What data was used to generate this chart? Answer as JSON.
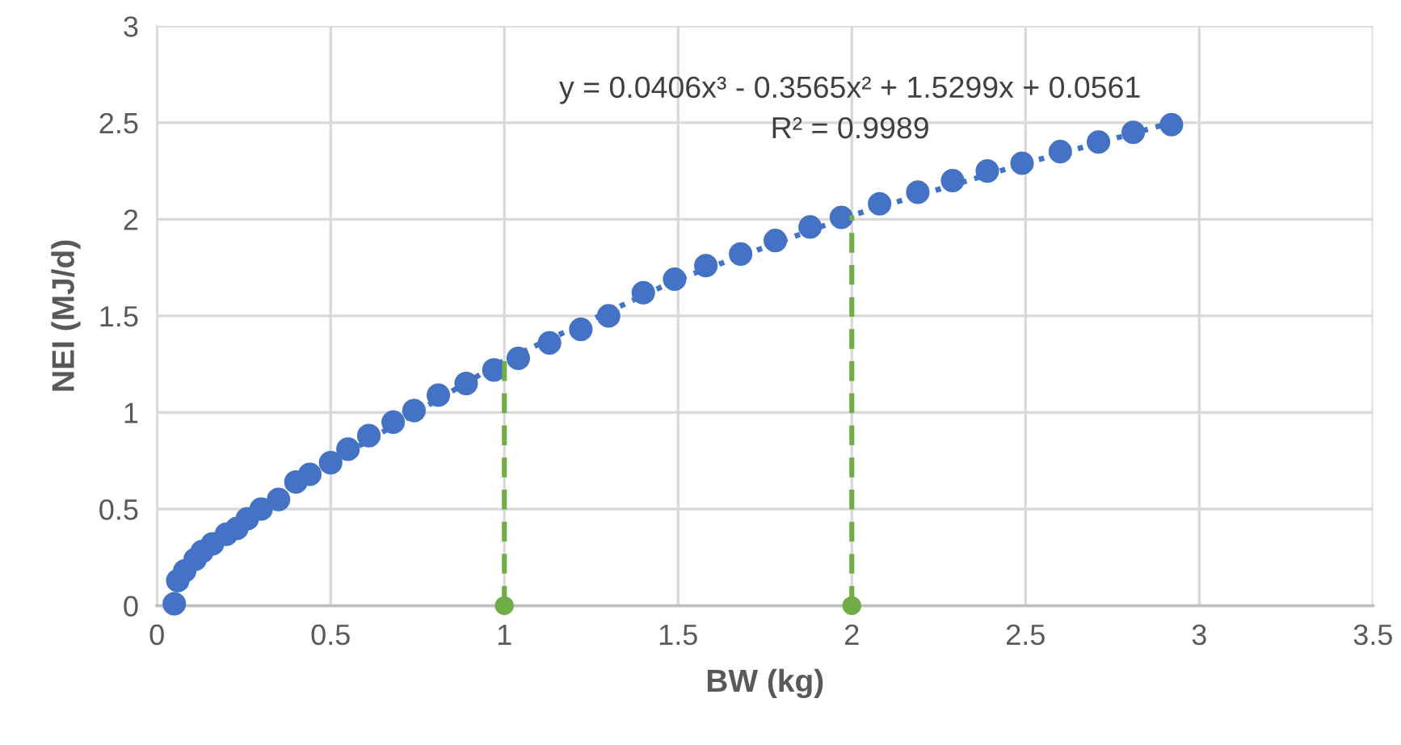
{
  "chart_data": {
    "type": "scatter",
    "xlabel": "BW (kg)",
    "ylabel": "NEI (MJ/d)",
    "xlim": [
      0,
      3.5
    ],
    "xticks": [
      0,
      0.5,
      1,
      1.5,
      2,
      2.5,
      3,
      3.5
    ],
    "ylim": [
      0,
      3
    ],
    "yticks": [
      0,
      0.5,
      1,
      1.5,
      2,
      2.5,
      3
    ],
    "grid": true,
    "legend": false,
    "annotations": [
      "y = 0.0406x³ - 0.3565x² + 1.5299x + 0.0561",
      "R² = 0.9989"
    ],
    "series": [
      {
        "color": "#4472c4",
        "marker": "circle",
        "x": [
          0.05,
          0.06,
          0.08,
          0.11,
          0.13,
          0.16,
          0.2,
          0.23,
          0.26,
          0.3,
          0.35,
          0.4,
          0.44,
          0.5,
          0.55,
          0.61,
          0.68,
          0.74,
          0.81,
          0.89,
          0.97,
          1.04,
          1.13,
          1.22,
          1.3,
          1.4,
          1.49,
          1.58,
          1.68,
          1.78,
          1.88,
          1.97,
          2.08,
          2.19,
          2.29,
          2.39,
          2.49,
          2.6,
          2.71,
          2.81,
          2.92
        ],
        "values": [
          0.01,
          0.13,
          0.18,
          0.24,
          0.28,
          0.32,
          0.37,
          0.4,
          0.45,
          0.5,
          0.55,
          0.64,
          0.68,
          0.74,
          0.81,
          0.88,
          0.95,
          1.01,
          1.09,
          1.15,
          1.22,
          1.28,
          1.36,
          1.43,
          1.5,
          1.62,
          1.69,
          1.76,
          1.82,
          1.89,
          1.96,
          2.01,
          2.08,
          2.14,
          2.2,
          2.25,
          2.29,
          2.35,
          2.4,
          2.45,
          2.49
        ]
      },
      {
        "type": "line",
        "color": "#4472c4",
        "line_style": "dotted",
        "marker": "none",
        "x": [
          0.05,
          0.25,
          0.5,
          1,
          1.5,
          2,
          2.5,
          2.92
        ],
        "values": [
          0.13,
          0.42,
          0.74,
          1.27,
          1.69,
          2.02,
          2.29,
          2.5
        ]
      },
      {
        "type": "line",
        "color": "#70ad47",
        "line_style": "dashed",
        "marker": "none",
        "x": [
          1,
          1
        ],
        "values": [
          0,
          1.27
        ]
      },
      {
        "type": "line",
        "color": "#70ad47",
        "line_style": "dashed",
        "marker": "none",
        "x": [
          2,
          2
        ],
        "values": [
          0,
          2.02
        ]
      },
      {
        "color": "#70ad47",
        "marker": "circle",
        "x": [
          1,
          2
        ],
        "values": [
          0,
          0
        ]
      }
    ]
  }
}
